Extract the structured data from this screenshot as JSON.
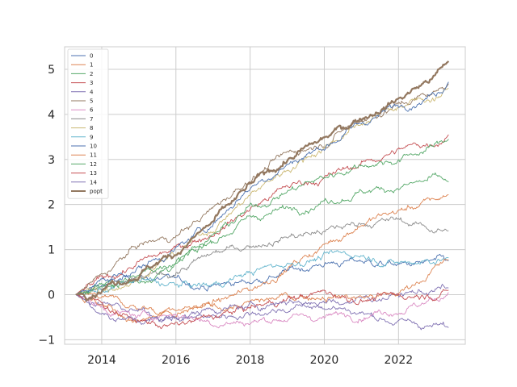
{
  "chart_data": {
    "type": "line",
    "title": "",
    "xlabel": "",
    "ylabel": "",
    "xlim": [
      2013.0,
      2023.8
    ],
    "ylim": [
      -1.1,
      5.5
    ],
    "x_ticks": [
      2014,
      2016,
      2018,
      2020,
      2022
    ],
    "y_ticks": [
      -1,
      0,
      1,
      2,
      3,
      4,
      5
    ],
    "grid": true,
    "legend_position": "top-left",
    "x_start": 2013.3,
    "x_end": 2023.35,
    "series": [
      {
        "name": "0",
        "color": "#4c72b0",
        "x": [
          2013.3,
          2014,
          2015,
          2016,
          2017,
          2018,
          2019,
          2020,
          2021,
          2022,
          2023,
          2023.35
        ],
        "y": [
          0,
          0.2,
          0.4,
          0.3,
          0.2,
          0.3,
          0.5,
          0.7,
          0.75,
          0.65,
          0.7,
          0.75
        ]
      },
      {
        "name": "1",
        "color": "#dd8452",
        "x": [
          2013.3,
          2014,
          2015,
          2016,
          2017,
          2018,
          2019,
          2020,
          2021,
          2022,
          2023,
          2023.35
        ],
        "y": [
          0,
          -0.1,
          -0.3,
          -0.4,
          -0.2,
          0.1,
          0.6,
          1.1,
          1.6,
          1.85,
          2.1,
          2.22
        ]
      },
      {
        "name": "2",
        "color": "#55a868",
        "x": [
          2013.3,
          2014,
          2015,
          2016,
          2017,
          2018,
          2019,
          2020,
          2021,
          2022,
          2023,
          2023.35
        ],
        "y": [
          0,
          0.2,
          0.3,
          0.7,
          1.2,
          1.7,
          1.9,
          2.1,
          2.3,
          2.4,
          2.55,
          2.5
        ]
      },
      {
        "name": "3",
        "color": "#c44e52",
        "x": [
          2013.3,
          2014,
          2015,
          2016,
          2017,
          2018,
          2019,
          2020,
          2021,
          2022,
          2023,
          2023.35
        ],
        "y": [
          0,
          0.3,
          0.7,
          1.0,
          1.4,
          1.9,
          2.4,
          2.6,
          2.9,
          3.2,
          3.4,
          3.55
        ]
      },
      {
        "name": "4",
        "color": "#8172b3",
        "x": [
          2013.3,
          2014,
          2015,
          2016,
          2017,
          2018,
          2019,
          2020,
          2021,
          2022,
          2023,
          2023.35
        ],
        "y": [
          0,
          -0.2,
          -0.4,
          -0.5,
          -0.5,
          -0.4,
          -0.3,
          -0.2,
          -0.1,
          0,
          0.1,
          0.15
        ]
      },
      {
        "name": "5",
        "color": "#937860",
        "x": [
          2013.3,
          2014,
          2015,
          2016,
          2017,
          2018,
          2019,
          2020,
          2021,
          2022,
          2023,
          2023.35
        ],
        "y": [
          0,
          0.4,
          1.1,
          1.3,
          1.9,
          2.6,
          3.1,
          3.4,
          3.9,
          4.2,
          4.5,
          4.68
        ]
      },
      {
        "name": "6",
        "color": "#da8bc3",
        "x": [
          2013.3,
          2014,
          2015,
          2016,
          2017,
          2018,
          2019,
          2020,
          2021,
          2022,
          2023,
          2023.35
        ],
        "y": [
          0,
          -0.3,
          -0.5,
          -0.4,
          -0.6,
          -0.6,
          -0.5,
          -0.5,
          -0.4,
          -0.3,
          -0.1,
          0.05
        ]
      },
      {
        "name": "7",
        "color": "#8c8c8c",
        "x": [
          2013.3,
          2014,
          2015,
          2016,
          2017,
          2018,
          2019,
          2020,
          2021,
          2022,
          2023,
          2023.35
        ],
        "y": [
          0,
          0.1,
          0.3,
          0.5,
          0.9,
          1.1,
          1.3,
          1.4,
          1.6,
          1.65,
          1.45,
          1.42
        ]
      },
      {
        "name": "8",
        "color": "#ccb974",
        "x": [
          2013.3,
          2014,
          2015,
          2016,
          2017,
          2018,
          2019,
          2020,
          2021,
          2022,
          2023,
          2023.35
        ],
        "y": [
          0,
          0.1,
          0.4,
          0.9,
          1.5,
          2.2,
          2.8,
          3.3,
          3.8,
          4.2,
          4.4,
          4.58
        ]
      },
      {
        "name": "9",
        "color": "#64b5cd",
        "x": [
          2013.3,
          2014,
          2015,
          2016,
          2017,
          2018,
          2019,
          2020,
          2021,
          2022,
          2023,
          2023.35
        ],
        "y": [
          0,
          0.1,
          0.3,
          0.2,
          0.2,
          0.5,
          0.7,
          0.85,
          0.9,
          0.7,
          0.8,
          0.82
        ]
      },
      {
        "name": "10",
        "color": "#4c72b0",
        "x": [
          2013.3,
          2014,
          2015,
          2016,
          2017,
          2018,
          2019,
          2020,
          2021,
          2022,
          2023,
          2023.35
        ],
        "y": [
          0,
          0.3,
          0.6,
          1.0,
          1.6,
          2.4,
          2.9,
          3.3,
          3.8,
          4.2,
          4.5,
          4.72
        ]
      },
      {
        "name": "11",
        "color": "#dd8452",
        "x": [
          2013.3,
          2014,
          2015,
          2016,
          2017,
          2018,
          2019,
          2020,
          2021,
          2022,
          2023,
          2023.35
        ],
        "y": [
          0,
          -0.2,
          -0.6,
          -0.4,
          -0.3,
          -0.2,
          -0.05,
          0,
          -0.05,
          0,
          0.6,
          0.78
        ]
      },
      {
        "name": "12",
        "color": "#55a868",
        "x": [
          2013.3,
          2014,
          2015,
          2016,
          2017,
          2018,
          2019,
          2020,
          2021,
          2022,
          2023,
          2023.35
        ],
        "y": [
          0,
          0.2,
          0.4,
          0.8,
          1.3,
          1.9,
          2.3,
          2.6,
          2.9,
          3.0,
          3.3,
          3.45
        ]
      },
      {
        "name": "13",
        "color": "#c44e52",
        "x": [
          2013.3,
          2014,
          2015,
          2016,
          2017,
          2018,
          2019,
          2020,
          2021,
          2022,
          2023,
          2023.35
        ],
        "y": [
          0,
          -0.2,
          -0.6,
          -0.7,
          -0.5,
          -0.3,
          -0.1,
          0.05,
          -0.1,
          -0.05,
          0.05,
          0.1
        ]
      },
      {
        "name": "14",
        "color": "#8172b3",
        "x": [
          2013.3,
          2014,
          2015,
          2016,
          2017,
          2018,
          2019,
          2020,
          2021,
          2022,
          2023,
          2023.35
        ],
        "y": [
          0,
          -0.4,
          -0.6,
          -0.5,
          -0.3,
          -0.3,
          -0.1,
          -0.2,
          -0.4,
          -0.6,
          -0.7,
          -0.73
        ]
      },
      {
        "name": "popt",
        "color": "#937860",
        "thick": true,
        "x": [
          2013.3,
          2014,
          2015,
          2016,
          2017,
          2018,
          2019,
          2020,
          2021,
          2022,
          2023,
          2023.35
        ],
        "y": [
          0,
          0.2,
          0.5,
          0.95,
          1.6,
          2.4,
          3.0,
          3.45,
          3.95,
          4.35,
          4.85,
          5.18
        ]
      }
    ]
  }
}
